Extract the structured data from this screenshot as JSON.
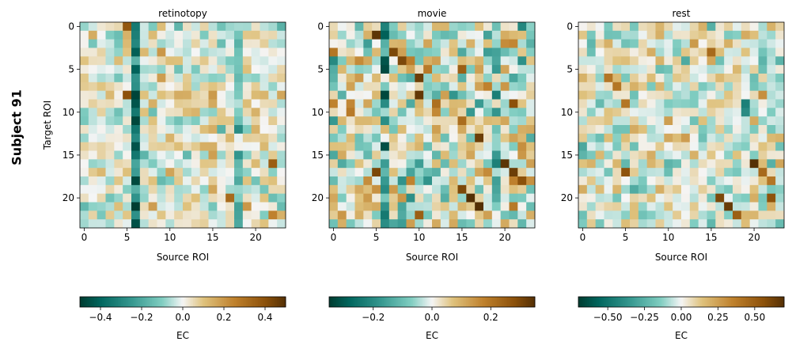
{
  "figure": {
    "row_label": "Subject 91"
  },
  "chart_data": [
    {
      "type": "heatmap",
      "title": "retinotopy",
      "xlabel": "Source ROI",
      "ylabel": "Target ROI",
      "n": 24,
      "x_ticks": [
        0,
        5,
        10,
        15,
        20
      ],
      "y_ticks": [
        0,
        5,
        10,
        15,
        20
      ],
      "vmin": -0.5,
      "vmax": 0.5,
      "colorbar": {
        "label": "EC",
        "ticks": [
          -0.4,
          -0.2,
          0.0,
          0.2,
          0.4
        ],
        "tick_labels": [
          "−0.4",
          "−0.2",
          "0.0",
          "0.2",
          "0.4"
        ]
      },
      "seed": 91,
      "spread": 0.09,
      "column_bias": {
        "6": -0.3,
        "18": -0.12,
        "15": 0.04
      },
      "row_bias": {
        "8": 0.04,
        "9": 0.04,
        "14": 0.05
      },
      "highlights": [
        {
          "row": 0,
          "col": 5,
          "value": 0.38
        },
        {
          "row": 0,
          "col": 6,
          "value": -0.34
        },
        {
          "row": 8,
          "col": 5,
          "value": 0.4
        },
        {
          "row": 8,
          "col": 6,
          "value": -0.48
        },
        {
          "row": 9,
          "col": 6,
          "value": -0.44
        },
        {
          "row": 16,
          "col": 22,
          "value": 0.36
        },
        {
          "row": 20,
          "col": 17,
          "value": 0.32
        },
        {
          "row": 21,
          "col": 19,
          "value": 0.2
        },
        {
          "row": 22,
          "col": 22,
          "value": 0.25
        }
      ]
    },
    {
      "type": "heatmap",
      "title": "movie",
      "xlabel": "Source ROI",
      "ylabel": "",
      "n": 24,
      "x_ticks": [
        0,
        5,
        10,
        15,
        20
      ],
      "y_ticks": [
        0,
        5,
        10,
        15,
        20
      ],
      "vmin": -0.35,
      "vmax": 0.35,
      "colorbar": {
        "label": "EC",
        "ticks": [
          -0.2,
          0.0,
          0.2
        ],
        "tick_labels": [
          "−0.2",
          "0.0",
          "0.2"
        ]
      },
      "seed": 1091,
      "spread": 0.1,
      "column_bias": {
        "6": -0.15,
        "19": -0.1
      },
      "row_bias": {},
      "highlights": [
        {
          "row": 0,
          "col": 6,
          "value": -0.22
        },
        {
          "row": 1,
          "col": 5,
          "value": 0.34
        },
        {
          "row": 3,
          "col": 7,
          "value": 0.3
        },
        {
          "row": 4,
          "col": 8,
          "value": 0.3
        },
        {
          "row": 5,
          "col": 15,
          "value": 0.25
        },
        {
          "row": 6,
          "col": 10,
          "value": 0.32
        },
        {
          "row": 8,
          "col": 6,
          "value": -0.33
        },
        {
          "row": 8,
          "col": 10,
          "value": 0.33
        },
        {
          "row": 9,
          "col": 21,
          "value": 0.28
        },
        {
          "row": 13,
          "col": 17,
          "value": 0.32
        },
        {
          "row": 16,
          "col": 20,
          "value": 0.34
        },
        {
          "row": 17,
          "col": 5,
          "value": 0.3
        },
        {
          "row": 17,
          "col": 21,
          "value": 0.32
        },
        {
          "row": 18,
          "col": 22,
          "value": 0.28
        },
        {
          "row": 19,
          "col": 15,
          "value": 0.3
        },
        {
          "row": 20,
          "col": 16,
          "value": 0.35
        },
        {
          "row": 21,
          "col": 17,
          "value": 0.35
        },
        {
          "row": 22,
          "col": 6,
          "value": -0.24
        },
        {
          "row": 22,
          "col": 10,
          "value": 0.25
        }
      ]
    },
    {
      "type": "heatmap",
      "title": "rest",
      "xlabel": "Source ROI",
      "ylabel": "",
      "n": 24,
      "x_ticks": [
        0,
        5,
        10,
        15,
        20
      ],
      "y_ticks": [
        0,
        5,
        10,
        15,
        20
      ],
      "vmin": -0.7,
      "vmax": 0.7,
      "colorbar": {
        "label": "EC",
        "ticks": [
          -0.5,
          -0.25,
          0.0,
          0.25,
          0.5
        ],
        "tick_labels": [
          "−0.50",
          "−0.25",
          "0.00",
          "0.25",
          "0.50"
        ]
      },
      "seed": 2091,
      "spread": 0.14,
      "column_bias": {},
      "row_bias": {},
      "highlights": [
        {
          "row": 3,
          "col": 15,
          "value": 0.45
        },
        {
          "row": 6,
          "col": 3,
          "value": 0.4
        },
        {
          "row": 7,
          "col": 4,
          "value": 0.4
        },
        {
          "row": 9,
          "col": 5,
          "value": 0.4
        },
        {
          "row": 9,
          "col": 19,
          "value": -0.45
        },
        {
          "row": 10,
          "col": 19,
          "value": -0.4
        },
        {
          "row": 17,
          "col": 5,
          "value": 0.55
        },
        {
          "row": 16,
          "col": 20,
          "value": 0.7
        },
        {
          "row": 17,
          "col": 21,
          "value": 0.45
        },
        {
          "row": 20,
          "col": 16,
          "value": 0.6
        },
        {
          "row": 21,
          "col": 17,
          "value": 0.65
        },
        {
          "row": 22,
          "col": 18,
          "value": 0.5
        },
        {
          "row": 20,
          "col": 22,
          "value": 0.55
        },
        {
          "row": 18,
          "col": 22,
          "value": 0.4
        }
      ]
    }
  ]
}
